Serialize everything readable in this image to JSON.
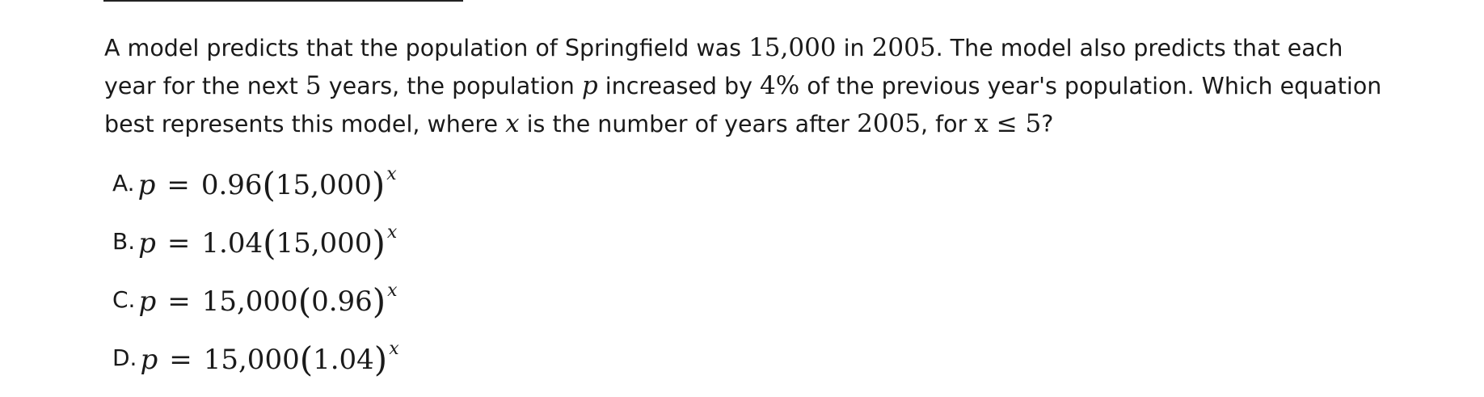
{
  "question": {
    "t1": "A model predicts that the population of Springfield was ",
    "n1": "15,000",
    "t2": " in ",
    "n2": "2005",
    "t3": ". The model also predicts that each year for the next ",
    "n3": "5",
    "t4": " years, the population ",
    "v1": "p",
    "t5": " increased by ",
    "n4": "4%",
    "t6": " of the previous year's population. Which equation best represents this model, where ",
    "v2": "x",
    "t7": " is the number of years after ",
    "n5": "2005",
    "t8": ", for ",
    "ineq": "x ≤ 5",
    "t9": "?"
  },
  "choices": [
    {
      "letter": "A.",
      "var": "p",
      "eq": "=",
      "coef": "0.96",
      "lparen": "(",
      "inner": "15,000",
      "rparen": ")",
      "exp": "x"
    },
    {
      "letter": "B.",
      "var": "p",
      "eq": "=",
      "coef": "1.04",
      "lparen": "(",
      "inner": "15,000",
      "rparen": ")",
      "exp": "x"
    },
    {
      "letter": "C.",
      "var": "p",
      "eq": "=",
      "coef": "15,000",
      "lparen": "(",
      "inner": "0.96",
      "rparen": ")",
      "exp": "x"
    },
    {
      "letter": "D.",
      "var": "p",
      "eq": "=",
      "coef": "15,000",
      "lparen": "(",
      "inner": "1.04",
      "rparen": ")",
      "exp": "x"
    }
  ]
}
